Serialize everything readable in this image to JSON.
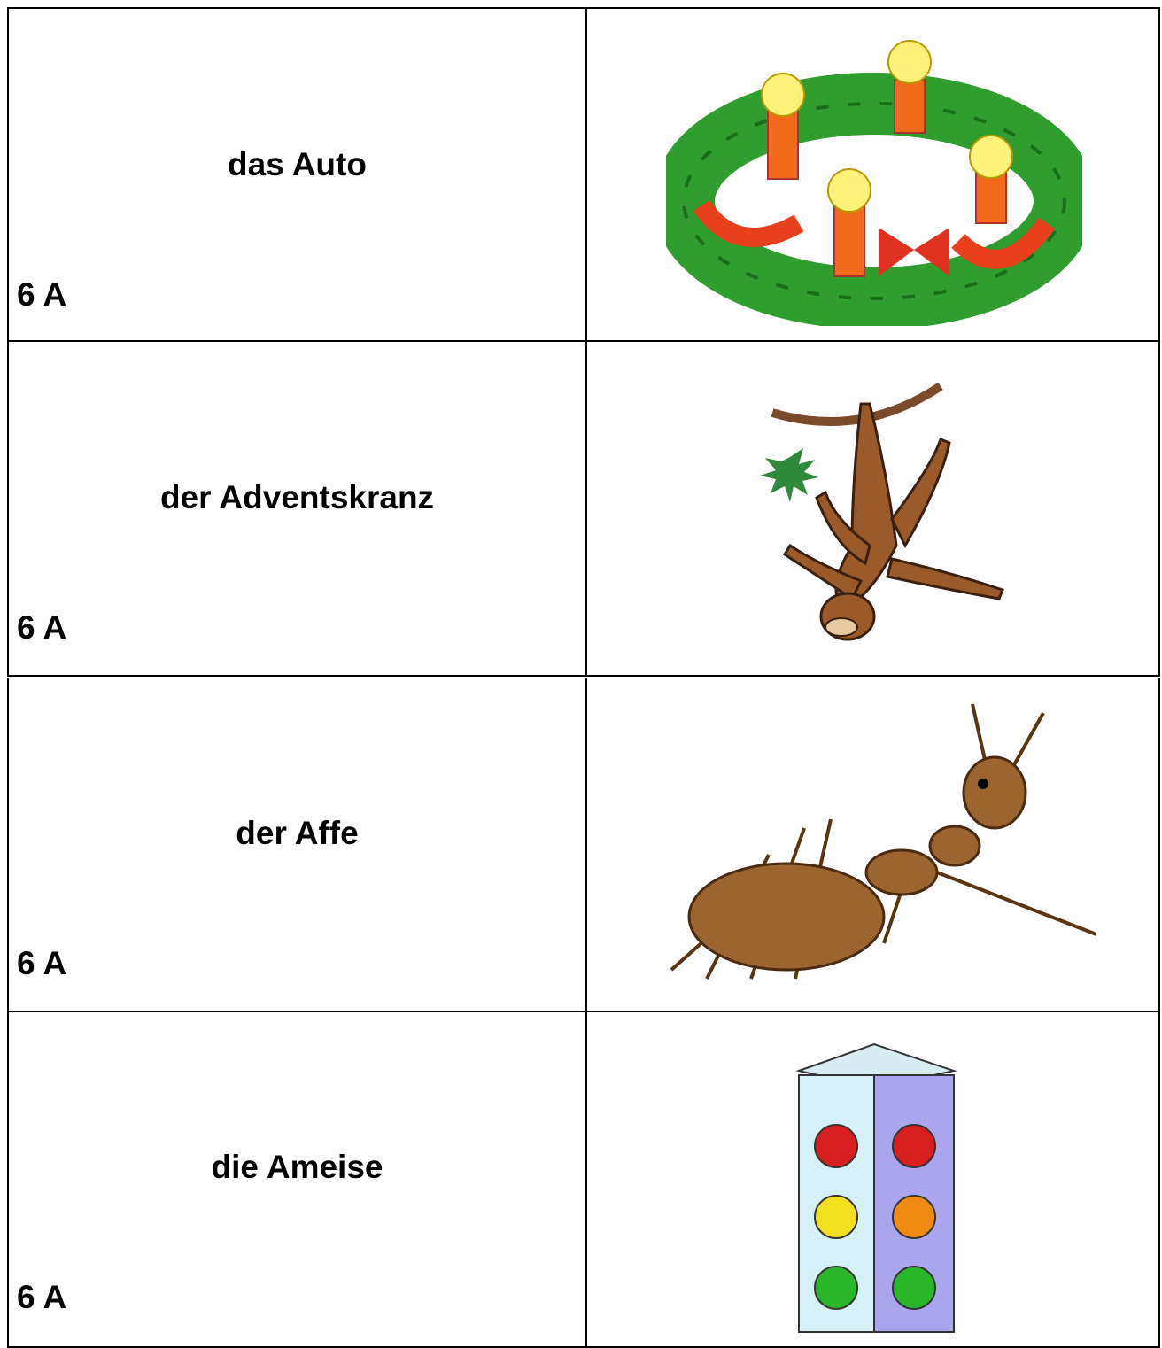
{
  "cards": [
    {
      "word": "das Auto",
      "label": "6 A"
    },
    {
      "word": "der Adventskranz",
      "label": "6 A"
    },
    {
      "word": "der Affe",
      "label": "6 A"
    },
    {
      "word": "die Ameise",
      "label": "6 A"
    }
  ]
}
